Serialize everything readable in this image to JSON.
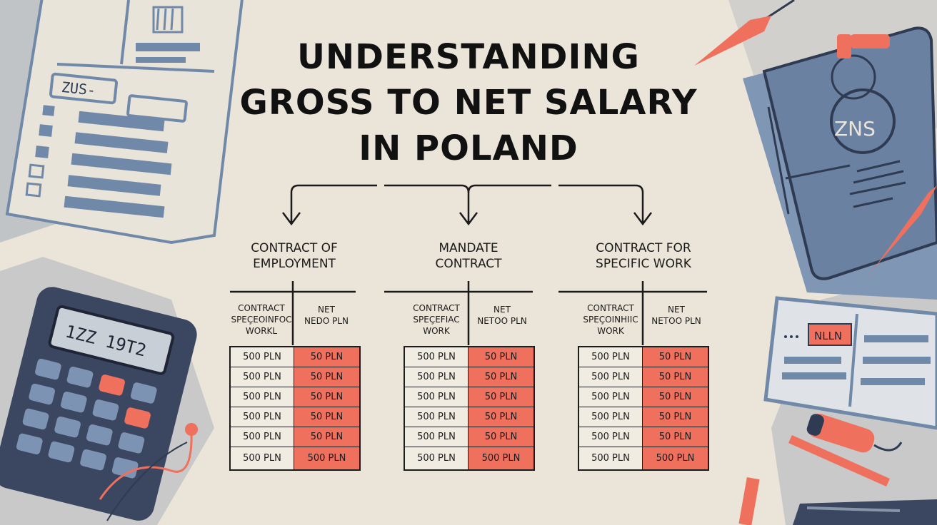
{
  "title": {
    "line1": "UNDERSTANDING",
    "line2": "GROSS TO NET SALARY",
    "line3": "IN POLAND"
  },
  "colors": {
    "background": "#ebe5d9",
    "slate": "#6f86a6",
    "dark_slate": "#3b4660",
    "coral": "#f0705e",
    "ink": "#111111"
  },
  "columns": [
    {
      "heading": [
        "CONTRACT OF",
        "EMPLOYMENT"
      ],
      "left_header": [
        "CONTRACT",
        "SPEÇEOINFOC",
        "WORKL"
      ],
      "right_header": [
        "NET",
        "NEDO PLN"
      ],
      "rows": [
        {
          "gross": "500 PLN",
          "net": "50 PLN"
        },
        {
          "gross": "500 PLN",
          "net": "50 PLN"
        },
        {
          "gross": "500 PLN",
          "net": "50 PLN"
        },
        {
          "gross": "500 PLN",
          "net": "50 PLN"
        },
        {
          "gross": "500 PLN",
          "net": "50 PLN"
        },
        {
          "gross": "500 PLN",
          "net": "500 PLN"
        }
      ]
    },
    {
      "heading": [
        "MANDATE",
        "CONTRACT"
      ],
      "left_header": [
        "CONTRACT",
        "SPEÇEFIAC",
        "WORK"
      ],
      "right_header": [
        "NET",
        "NETOO PLN"
      ],
      "rows": [
        {
          "gross": "500 PLN",
          "net": "50 PLN"
        },
        {
          "gross": "500 PLN",
          "net": "50 PLN"
        },
        {
          "gross": "500 PLN",
          "net": "50 PLN"
        },
        {
          "gross": "500 PLN",
          "net": "50 PLN"
        },
        {
          "gross": "500 PLN",
          "net": "50 PLN"
        },
        {
          "gross": "500 PLN",
          "net": "500 PLN"
        }
      ]
    },
    {
      "heading": [
        "CONTRACT FOR",
        "SPECIFIC WORK"
      ],
      "left_header": [
        "CONTRACT",
        "SPEÇOINHIIC",
        "WORK"
      ],
      "right_header": [
        "NET",
        "NETOO PLN"
      ],
      "rows": [
        {
          "gross": "500 PLN",
          "net": "50 PLN"
        },
        {
          "gross": "500 PLN",
          "net": "50 PLN"
        },
        {
          "gross": "500 PLN",
          "net": "50 PLN"
        },
        {
          "gross": "500 PLN",
          "net": "50 PLN"
        },
        {
          "gross": "500 PLN",
          "net": "50 PLN"
        },
        {
          "gross": "500 PLN",
          "net": "500 PLN"
        }
      ]
    }
  ],
  "illustrations": {
    "form_label": "ZUS-",
    "stamp_label": "ZNS",
    "calculator_display": "1ZZ 19T2",
    "card_label": "NLLN",
    "icons": [
      "tax-form-icon",
      "folder-stamp-icon",
      "calculator-icon",
      "id-card-icon",
      "pen-icon"
    ]
  }
}
